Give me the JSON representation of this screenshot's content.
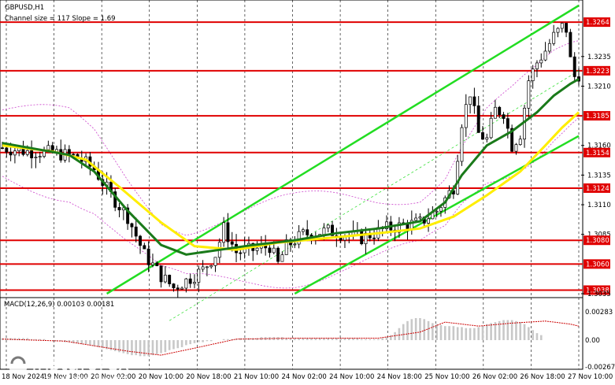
{
  "chart_data": [
    {
      "type": "candlestick",
      "symbol_title": "GBPUSD,H1",
      "indicator_text": "Channel size = 117 Slope = 1.69",
      "y_ticks": [
        "1.3264",
        "1.3235",
        "1.3223",
        "1.3210",
        "1.3185",
        "1.3160",
        "1.3154",
        "1.3135",
        "1.3124",
        "1.3110",
        "1.3085",
        "1.3080",
        "1.3060",
        "1.3038",
        "1.3035"
      ],
      "ylim": [
        1.3033,
        1.328
      ],
      "x_ticks": [
        "18 Nov 2024",
        "19 Nov 18:00",
        "20 Nov 02:00",
        "20 Nov 10:00",
        "20 Nov 18:00",
        "21 Nov 10:00",
        "24 Nov 02:00",
        "24 Nov 10:00",
        "24 Nov 18:00",
        "25 Nov 10:00",
        "26 Nov 02:00",
        "26 Nov 18:00",
        "27 Nov 10:00"
      ],
      "support_resistance_levels": [
        1.3264,
        1.3223,
        1.3185,
        1.3154,
        1.3124,
        1.308,
        1.306,
        1.3038
      ],
      "highlighted_level": 1.3223,
      "close_path": [
        [
          0,
          1.3158
        ],
        [
          6,
          1.3155
        ],
        [
          12,
          1.3154
        ],
        [
          18,
          1.315
        ],
        [
          22,
          1.314
        ],
        [
          26,
          1.3118
        ],
        [
          30,
          1.31
        ],
        [
          34,
          1.3068
        ],
        [
          38,
          1.305
        ],
        [
          41,
          1.304
        ],
        [
          44,
          1.3046
        ],
        [
          48,
          1.3055
        ],
        [
          51,
          1.3068
        ],
        [
          53,
          1.309
        ],
        [
          56,
          1.307
        ],
        [
          60,
          1.3072
        ],
        [
          64,
          1.3075
        ],
        [
          66,
          1.306
        ],
        [
          68,
          1.3075
        ],
        [
          72,
          1.3085
        ],
        [
          78,
          1.3088
        ],
        [
          86,
          1.3082
        ],
        [
          92,
          1.309
        ],
        [
          100,
          1.3095
        ],
        [
          104,
          1.3105
        ],
        [
          108,
          1.3125
        ],
        [
          110,
          1.318
        ],
        [
          112,
          1.3205
        ],
        [
          114,
          1.317
        ],
        [
          116,
          1.3165
        ],
        [
          118,
          1.319
        ],
        [
          120,
          1.3188
        ],
        [
          122,
          1.316
        ],
        [
          124,
          1.317
        ],
        [
          126,
          1.3215
        ],
        [
          128,
          1.323
        ],
        [
          130,
          1.324
        ],
        [
          132,
          1.3252
        ],
        [
          134,
          1.326
        ],
        [
          135,
          1.3258
        ],
        [
          136,
          1.3232
        ],
        [
          137,
          1.3218
        ],
        [
          138,
          1.322
        ]
      ],
      "ma_green_path": [
        [
          0,
          1.3162
        ],
        [
          8,
          1.3157
        ],
        [
          16,
          1.3152
        ],
        [
          22,
          1.3138
        ],
        [
          30,
          1.3105
        ],
        [
          38,
          1.3076
        ],
        [
          44,
          1.3068
        ],
        [
          52,
          1.3072
        ],
        [
          60,
          1.3076
        ],
        [
          70,
          1.308
        ],
        [
          80,
          1.3086
        ],
        [
          90,
          1.309
        ],
        [
          100,
          1.3096
        ],
        [
          106,
          1.3112
        ],
        [
          110,
          1.3135
        ],
        [
          116,
          1.316
        ],
        [
          122,
          1.3172
        ],
        [
          128,
          1.3188
        ],
        [
          132,
          1.3202
        ],
        [
          136,
          1.3212
        ],
        [
          138,
          1.3216
        ]
      ],
      "ma_yellow_path": [
        [
          0,
          1.316
        ],
        [
          12,
          1.3155
        ],
        [
          20,
          1.3148
        ],
        [
          28,
          1.3125
        ],
        [
          38,
          1.3095
        ],
        [
          46,
          1.3075
        ],
        [
          56,
          1.3072
        ],
        [
          66,
          1.3078
        ],
        [
          78,
          1.3082
        ],
        [
          90,
          1.3086
        ],
        [
          100,
          1.309
        ],
        [
          108,
          1.31
        ],
        [
          116,
          1.3118
        ],
        [
          124,
          1.3138
        ],
        [
          130,
          1.316
        ],
        [
          134,
          1.3175
        ],
        [
          138,
          1.3188
        ]
      ],
      "channel_upper_path": [
        [
          25,
          1.3035
        ],
        [
          138,
          1.3278
        ]
      ],
      "channel_lower_path": [
        [
          70,
          1.3035
        ],
        [
          138,
          1.3168
        ]
      ],
      "macd": {
        "label": "MACD(12,26,9) 0.00103 0.00181",
        "y_ticks": [
          "0.00283",
          "0.00",
          "-0.00267"
        ],
        "ylim": [
          -0.00267,
          0.00283
        ],
        "histogram": [
          0.0002,
          0.0002,
          0.0002,
          0.0002,
          0.0002,
          0.0002,
          0.0002,
          0.0001,
          0.0001,
          0.0001,
          0.0001,
          0.0,
          0.0,
          -0.0001,
          -0.0001,
          -0.0002,
          -0.0002,
          -0.0003,
          -0.0003,
          -0.0004,
          -0.0004,
          -0.0005,
          -0.0006,
          -0.0007,
          -0.0008,
          -0.0009,
          -0.001,
          -0.0011,
          -0.0012,
          -0.0013,
          -0.0014,
          -0.0015,
          -0.0015,
          -0.0016,
          -0.0016,
          -0.0016,
          -0.0015,
          -0.0014,
          -0.0013,
          -0.0012,
          -0.001,
          -0.0009,
          -0.0008,
          -0.0007,
          -0.0005,
          -0.0004,
          -0.0003,
          -0.0002,
          -0.0002,
          -0.0001,
          -0.0001,
          0.0,
          0.0,
          0.0001,
          0.0001,
          0.0001,
          0.0001,
          0.0002,
          0.0002,
          0.0002,
          0.0002,
          0.0002,
          0.0003,
          0.0003,
          0.0003,
          0.0003,
          0.0003,
          0.0003,
          0.0002,
          0.0002,
          0.0002,
          0.0002,
          0.0002,
          0.0002,
          0.0002,
          0.0002,
          0.0002,
          0.0002,
          0.0002,
          0.0002,
          0.0002,
          0.0002,
          0.0002,
          0.0002,
          0.0002,
          0.0002,
          0.0001,
          0.0001,
          0.0001,
          0.0001,
          0.0001,
          0.0002,
          0.0003,
          0.0005,
          0.0008,
          0.0012,
          0.0016,
          0.0019,
          0.0021,
          0.0022,
          0.0022,
          0.0021,
          0.0019,
          0.0017,
          0.0016,
          0.0015,
          0.0014,
          0.0014,
          0.0014,
          0.0013,
          0.0013,
          0.0012,
          0.0012,
          0.0012,
          0.0013,
          0.0014,
          0.0016,
          0.0017,
          0.0018,
          0.0019,
          0.002,
          0.002,
          0.002,
          0.0019,
          0.0018,
          0.0016,
          0.0013,
          0.001,
          0.0007,
          0.0005
        ],
        "signal_path": [
          [
            0,
            0.0001
          ],
          [
            15,
            -0.0001
          ],
          [
            30,
            -0.0011
          ],
          [
            38,
            -0.0015
          ],
          [
            46,
            -0.0008
          ],
          [
            56,
            0.0001
          ],
          [
            70,
            0.0002
          ],
          [
            90,
            0.0002
          ],
          [
            100,
            0.0008
          ],
          [
            106,
            0.0018
          ],
          [
            114,
            0.0014
          ],
          [
            122,
            0.0017
          ],
          [
            130,
            0.0019
          ],
          [
            136,
            0.0016
          ],
          [
            138,
            0.0014
          ]
        ]
      }
    }
  ],
  "colors": {
    "candle": "#000000",
    "level_line": "#e00000",
    "level_label_bg": "#e00000",
    "highlight_label_bg": "#e00000",
    "ma_green": "#1a7a1a",
    "ma_yellow": "#ffee00",
    "channel": "#22dd22",
    "envelope": "#cc44cc",
    "macd_hist": "#c8c8c8",
    "macd_signal": "#cc0000",
    "grid_dash": "#000000"
  },
  "brand": {
    "logo_text": "instaforex",
    "logo_tagline": "Instant Forex Trading"
  }
}
